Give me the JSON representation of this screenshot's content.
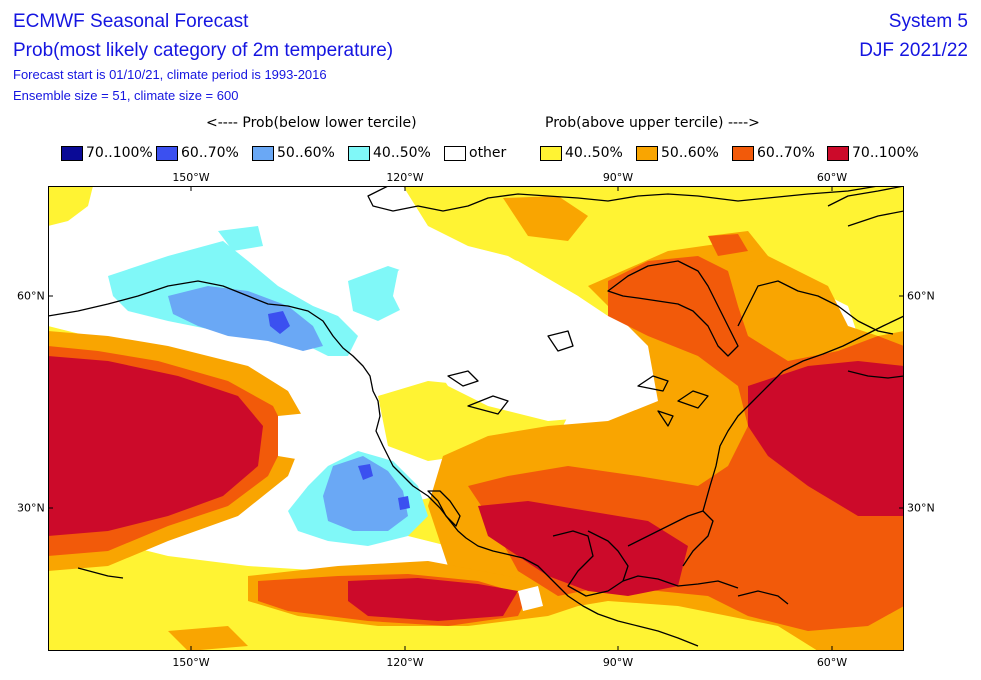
{
  "header": {
    "title": "ECMWF Seasonal Forecast",
    "subtitle": "Prob(most likely category of 2m temperature)",
    "info1": "Forecast start is 01/10/21, climate period is 1993-2016",
    "info2": "Ensemble size = 51, climate size = 600",
    "system": "System 5",
    "season": "DJF 2021/22"
  },
  "legend": {
    "below_title": "<---- Prob(below lower tercile)",
    "above_title": "Prob(above upper tercile) ---->",
    "items": [
      {
        "label": "70..100%",
        "color": "#0a0a96"
      },
      {
        "label": "60..70%",
        "color": "#3b50f0"
      },
      {
        "label": "50..60%",
        "color": "#6aa8f5"
      },
      {
        "label": "40..50%",
        "color": "#80f8f8"
      },
      {
        "label": "other",
        "color": "#ffffff"
      },
      {
        "label": "40..50%",
        "color": "#fff333"
      },
      {
        "label": "50..60%",
        "color": "#f9a501"
      },
      {
        "label": "60..70%",
        "color": "#f25a0a"
      },
      {
        "label": "70..100%",
        "color": "#cc0a2a"
      }
    ]
  },
  "axes": {
    "lon_labels": [
      "150°W",
      "120°W",
      "90°W",
      "60°W"
    ],
    "lat_labels": [
      "60°N",
      "30°N"
    ]
  }
}
